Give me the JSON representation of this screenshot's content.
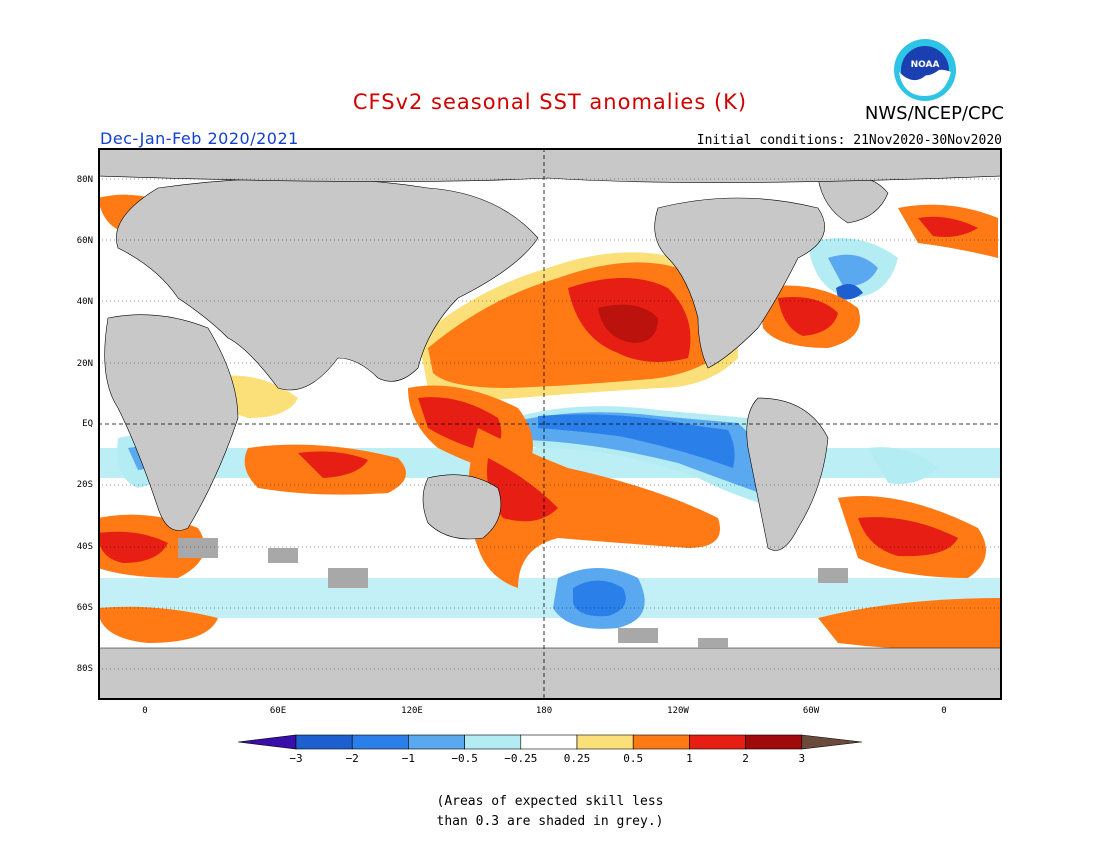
{
  "header": {
    "title": "CFSv2 seasonal SST anomalies (K)",
    "org": "NWS/NCEP/CPC",
    "logo_text": "NOAA",
    "period": "Dec-Jan-Feb 2020/2021",
    "initial_conditions": "Initial conditions: 21Nov2020-30Nov2020"
  },
  "map": {
    "projection": "equirectangular",
    "lon_range": [
      "20W",
      "20E (wrapped)"
    ],
    "lat_range": [
      "90S",
      "90N"
    ],
    "y_ticks": [
      "80N",
      "60N",
      "40N",
      "20N",
      "EQ",
      "20S",
      "40S",
      "60S",
      "80S"
    ],
    "x_ticks": [
      "0",
      "60E",
      "120E",
      "180",
      "120W",
      "60W",
      "0"
    ],
    "reference_lines": [
      "equator dashed",
      "180 meridian dashed"
    ],
    "land_color": "#c8c8c8",
    "skill_mask_color": "#a8a8a8"
  },
  "colorbar": {
    "ticks": [
      "−3",
      "−2",
      "−1",
      "−0.5",
      "−0.25",
      "0.25",
      "0.5",
      "1",
      "2",
      "3"
    ],
    "colors": [
      "#3a0ea8",
      "#1e5fd0",
      "#2a80e8",
      "#5aa8f0",
      "#b4ecf4",
      "#ffffff",
      "#fbe07a",
      "#ff7a14",
      "#e61e14",
      "#a00a0a",
      "#6a4a3a"
    ],
    "units": "K"
  },
  "note": {
    "line1": "(Areas of expected skill less",
    "line2": "than 0.3 are shaded in grey.)"
  }
}
